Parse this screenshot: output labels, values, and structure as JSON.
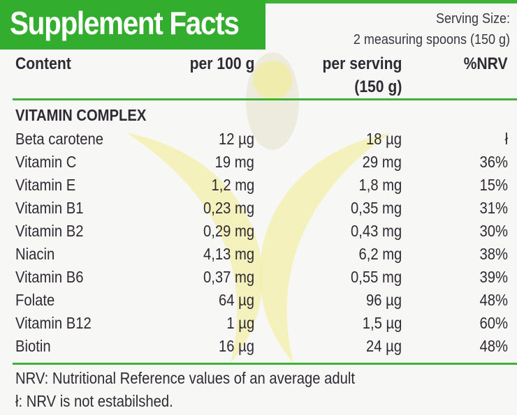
{
  "title": "Supplement Facts",
  "serving": {
    "label": "Serving Size:",
    "value": "2 measuring spoons (150 g)"
  },
  "headers": {
    "content": "Content",
    "per100": "per 100 g",
    "per_serving": "per serving",
    "per_serving_unit": "(150 g)",
    "nrv": "%NRV"
  },
  "section": "VITAMIN COMPLEX",
  "rows": [
    {
      "name": "Beta carotene",
      "per100": "12 µg",
      "serving": "18 µg",
      "nrv": "ł"
    },
    {
      "name": "Vitamin C",
      "per100": "19 mg",
      "serving": "29 mg",
      "nrv": "36%"
    },
    {
      "name": "Vitamin E",
      "per100": "1,2 mg",
      "serving": "1,8 mg",
      "nrv": "15%"
    },
    {
      "name": "Vitamin B1",
      "per100": "0,23 mg",
      "serving": "0,35 mg",
      "nrv": "31%"
    },
    {
      "name": "Vitamin B2",
      "per100": "0,29 mg",
      "serving": "0,43 mg",
      "nrv": "30%"
    },
    {
      "name": "Niacin",
      "per100": "4,13 mg",
      "serving": "6,2 mg",
      "nrv": "38%"
    },
    {
      "name": "Vitamin B6",
      "per100": "0,37 mg",
      "serving": "0,55 mg",
      "nrv": "39%"
    },
    {
      "name": "Folate",
      "per100": "64 µg",
      "serving": "96 µg",
      "nrv": "48%"
    },
    {
      "name": "Vitamin B12",
      "per100": "1 µg",
      "serving": "1,5 µg",
      "nrv": "60%"
    },
    {
      "name": "Biotin",
      "per100": "16 µg",
      "serving": "24 µg",
      "nrv": "48%"
    }
  ],
  "footnotes": [
    "NRV: Nutritional Reference values of an average adult",
    "ł: NRV is not estabilshed."
  ],
  "colors": {
    "brand_green": "#33ad2e",
    "watermark_yellow": "#f3f0a0"
  }
}
